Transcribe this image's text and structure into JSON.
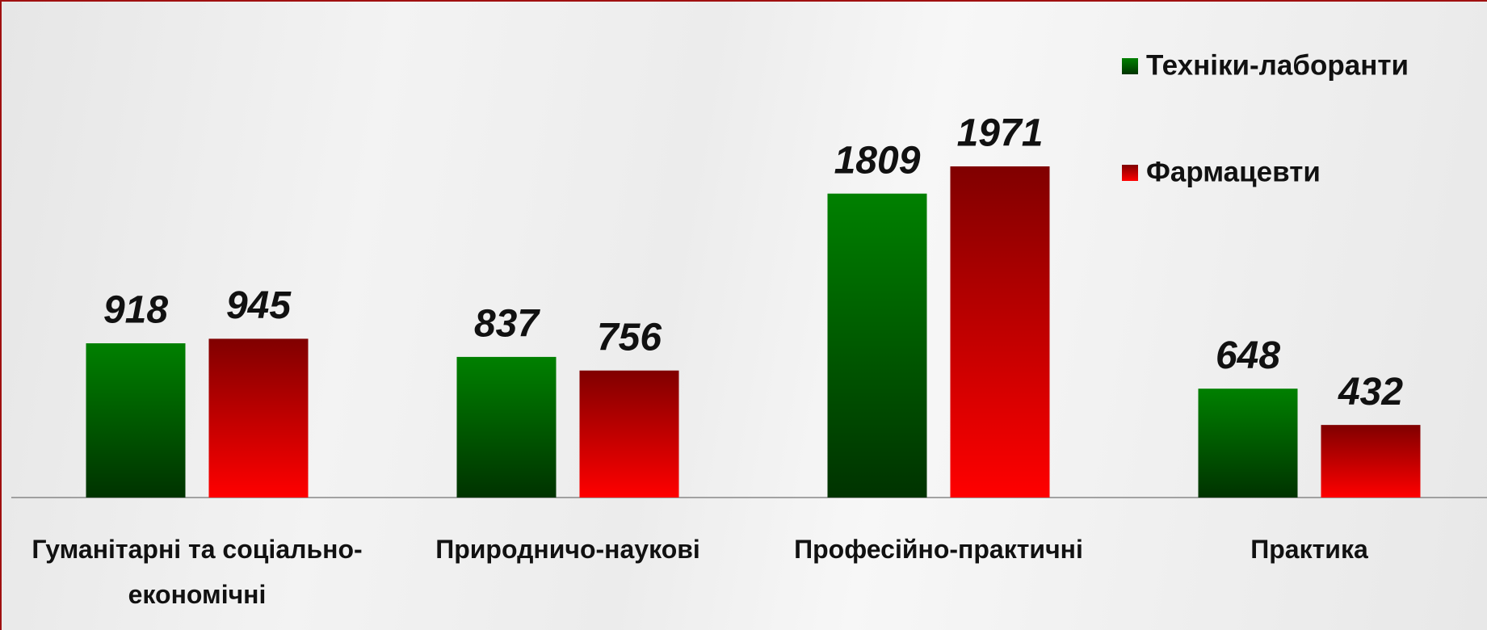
{
  "chart_data": {
    "type": "bar",
    "categories": [
      "Гуманітарні та соціально-економічні",
      "Природничо-наукові",
      "Професійно-практичні",
      "Практика"
    ],
    "series": [
      {
        "name": "Техніки-лаборанти",
        "color": "#008000",
        "values": [
          918,
          837,
          1809,
          648
        ]
      },
      {
        "name": "Фармацевти",
        "color": "#ff0000",
        "values": [
          945,
          756,
          1971,
          432
        ]
      }
    ],
    "legend": "top-right"
  }
}
